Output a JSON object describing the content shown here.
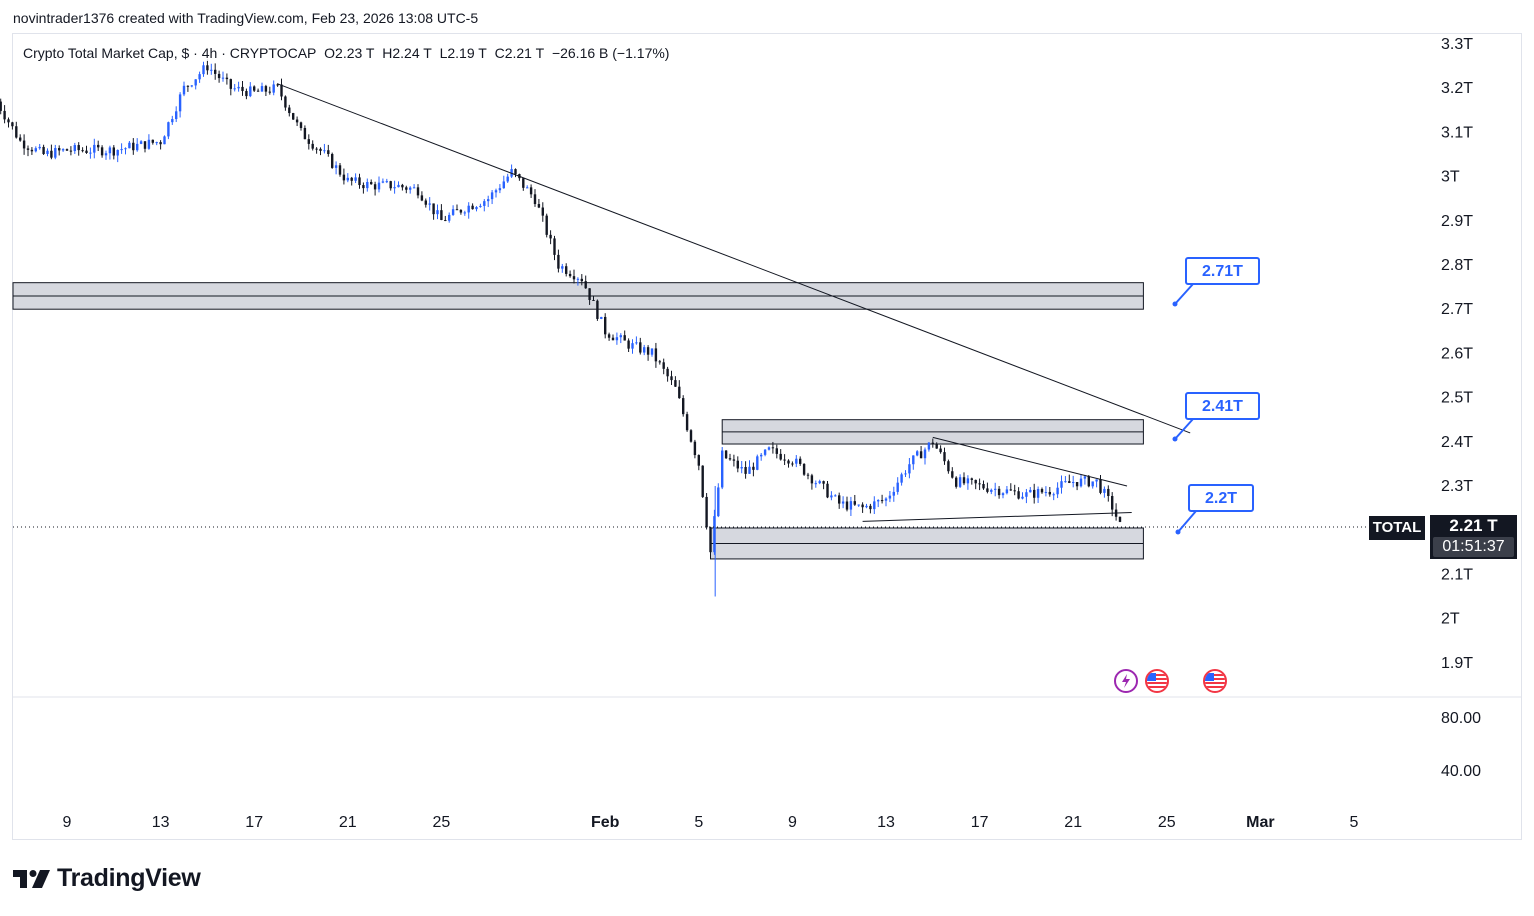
{
  "header": {
    "attribution": "novintrader1376 created with TradingView.com, Feb 23, 2026 13:08 UTC-5"
  },
  "legend": {
    "symbol_name": "Crypto Total Market Cap, $",
    "interval": "4h",
    "exchange": "CRYPTOCAP",
    "open": "O2.23 T",
    "high": "H2.24 T",
    "low": "L2.19 T",
    "close": "C2.21 T",
    "change": "−26.16 B (−1.17%)"
  },
  "price_axis": {
    "labels": [
      "3.3T",
      "3.2T",
      "3.1T",
      "3T",
      "2.9T",
      "2.8T",
      "2.7T",
      "2.6T",
      "2.5T",
      "2.4T",
      "2.3T",
      "2.1T",
      "2T",
      "1.9T"
    ]
  },
  "indicator_axis": {
    "labels": [
      "80.00",
      "40.00"
    ]
  },
  "time_axis": {
    "labels": [
      "9",
      "13",
      "17",
      "21",
      "25",
      "Feb",
      "5",
      "9",
      "13",
      "17",
      "21",
      "25",
      "Mar",
      "5"
    ]
  },
  "last_price": {
    "symbol": "TOTAL",
    "price": "2.21 T",
    "countdown": "01:51:37"
  },
  "callouts": [
    {
      "name": "callout-2-71t",
      "text": "2.71T"
    },
    {
      "name": "callout-2-41t",
      "text": "2.41T"
    },
    {
      "name": "callout-2-2t",
      "text": "2.2T"
    }
  ],
  "events": [
    {
      "name": "lightning-event-icon"
    },
    {
      "name": "us-flag-event-icon"
    },
    {
      "name": "us-flag-event-icon"
    }
  ],
  "branding": {
    "logo_text": "TradingView"
  },
  "colors": {
    "bullish": "#2962ff",
    "bearish": "#131722",
    "zone_fill": "#d1d4dc",
    "callout_accent": "#2962ff"
  },
  "chart_data": {
    "type": "candlestick",
    "y_unit": "T",
    "ylim": [
      1.85,
      3.32
    ],
    "x_range": [
      "Jan 6, 2026",
      "Mar 8, 2026"
    ],
    "price_scale": [
      3.3,
      3.2,
      3.1,
      3.0,
      2.9,
      2.8,
      2.7,
      2.6,
      2.5,
      2.4,
      2.3,
      2.1,
      2.0,
      1.9
    ],
    "close_path": [
      [
        "Jan 6",
        3.17
      ],
      [
        "Jan 7",
        3.08
      ],
      [
        "Jan 8",
        3.05
      ],
      [
        "Jan 9",
        3.06
      ],
      [
        "Jan 11",
        3.06
      ],
      [
        "Jan 12",
        3.07
      ],
      [
        "Jan 13",
        3.08
      ],
      [
        "Jan 14",
        3.2
      ],
      [
        "Jan 15",
        3.25
      ],
      [
        "Jan 16",
        3.2
      ],
      [
        "Jan 17",
        3.19
      ],
      [
        "Jan 18",
        3.2
      ],
      [
        "Jan 19",
        3.1
      ],
      [
        "Jan 20",
        3.05
      ],
      [
        "Jan 21",
        2.99
      ],
      [
        "Jan 22",
        2.98
      ],
      [
        "Jan 23",
        2.98
      ],
      [
        "Jan 24",
        2.97
      ],
      [
        "Jan 25",
        2.9
      ],
      [
        "Jan 26",
        2.93
      ],
      [
        "Jan 27",
        2.95
      ],
      [
        "Jan 28",
        3.01
      ],
      [
        "Jan 29",
        2.95
      ],
      [
        "Jan 30",
        2.8
      ],
      [
        "Jan 31",
        2.77
      ],
      [
        "Feb 1",
        2.65
      ],
      [
        "Feb 2",
        2.62
      ],
      [
        "Feb 3",
        2.6
      ],
      [
        "Feb 4",
        2.52
      ],
      [
        "Feb 5",
        2.35
      ],
      [
        "Feb 5.5",
        2.15
      ],
      [
        "Feb 6",
        2.37
      ],
      [
        "Feb 7",
        2.33
      ],
      [
        "Feb 8",
        2.38
      ],
      [
        "Feb 9",
        2.36
      ],
      [
        "Feb 10",
        2.31
      ],
      [
        "Feb 11",
        2.26
      ],
      [
        "Feb 12",
        2.25
      ],
      [
        "Feb 13",
        2.27
      ],
      [
        "Feb 14",
        2.35
      ],
      [
        "Feb 15",
        2.4
      ],
      [
        "Feb 16",
        2.31
      ],
      [
        "Feb 17",
        2.3
      ],
      [
        "Feb 18",
        2.29
      ],
      [
        "Feb 19",
        2.28
      ],
      [
        "Feb 20",
        2.29
      ],
      [
        "Feb 21",
        2.31
      ],
      [
        "Feb 22",
        2.31
      ],
      [
        "Feb 22.7",
        2.25
      ],
      [
        "Feb 23",
        2.21
      ]
    ],
    "zones": [
      {
        "top": 2.76,
        "bottom": 2.7,
        "start": "Jan 6",
        "end": "Feb 24"
      },
      {
        "top": 2.45,
        "bottom": 2.395,
        "start": "Feb 6",
        "end": "Feb 24"
      },
      {
        "top": 2.205,
        "bottom": 2.135,
        "start": "Feb 5.5",
        "end": "Feb 24"
      }
    ],
    "trendlines": [
      {
        "from": [
          "Jan 18",
          3.21
        ],
        "to": [
          "Feb 26",
          2.42
        ]
      },
      {
        "from": [
          "Feb 15",
          2.41
        ],
        "to": [
          "Feb 23.3",
          2.3
        ]
      },
      {
        "from": [
          "Feb 12",
          2.22
        ],
        "to": [
          "Feb 23.5",
          2.24
        ]
      }
    ],
    "indicator_pane": {
      "labels": [
        80,
        40
      ]
    }
  }
}
